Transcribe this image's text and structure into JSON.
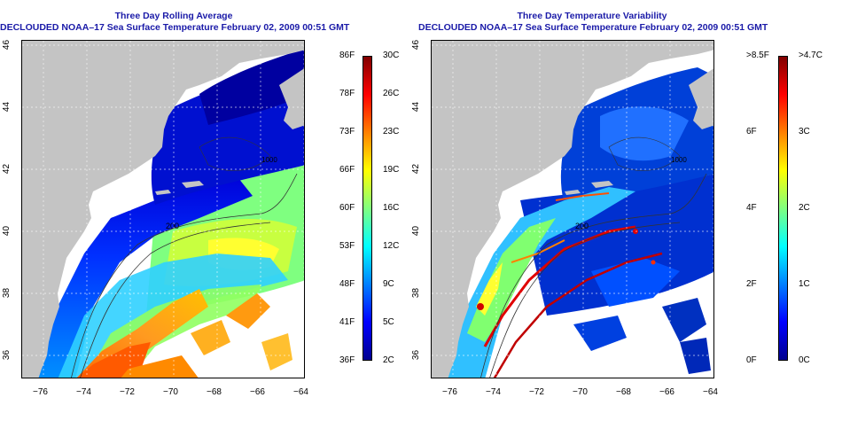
{
  "left_panel": {
    "title_line1": "Three Day Rolling Average",
    "title_line2": "DECLOUDED NOAA–17 Sea Surface Temperature February 02, 2009 00:51 GMT",
    "colorbar": {
      "gradient": [
        "#00008f",
        "#0000ff",
        "#0080ff",
        "#00ffff",
        "#80ff80",
        "#ffff00",
        "#ff8000",
        "#ff0000",
        "#800000"
      ],
      "fahrenheit_labels": [
        "86F",
        "78F",
        "73F",
        "66F",
        "60F",
        "53F",
        "48F",
        "41F",
        "36F"
      ],
      "celsius_labels": [
        "30C",
        "26C",
        "23C",
        "19C",
        "16C",
        "12C",
        "9C",
        "5C",
        "2C"
      ]
    }
  },
  "right_panel": {
    "title_line1": "Three Day Temperature Variability",
    "title_line2": "DECLOUDED NOAA–17 Sea Surface Temperature February 02, 2009 00:51 GMT",
    "colorbar": {
      "gradient": [
        "#00008f",
        "#0000ff",
        "#0080ff",
        "#00ffff",
        "#80ff80",
        "#ffff00",
        "#ff8000",
        "#ff0000",
        "#800000"
      ],
      "fahrenheit_labels": [
        ">8.5F",
        "6F",
        "4F",
        "2F",
        "0F"
      ],
      "celsius_labels": [
        ">4.7C",
        "3C",
        "2C",
        "1C",
        "0C"
      ]
    }
  },
  "axes": {
    "x_ticks": [
      "−76",
      "−74",
      "−72",
      "−70",
      "−68",
      "−66",
      "−64"
    ],
    "y_ticks": [
      "46",
      "44",
      "42",
      "40",
      "38",
      "36"
    ]
  },
  "map_colors": {
    "land": "#c4c4c4",
    "no_data": "#ffffff"
  },
  "isobath_labels": {
    "left_200": "200",
    "left_1000": "1000",
    "right_200": "200",
    "right_1000": "1000"
  }
}
